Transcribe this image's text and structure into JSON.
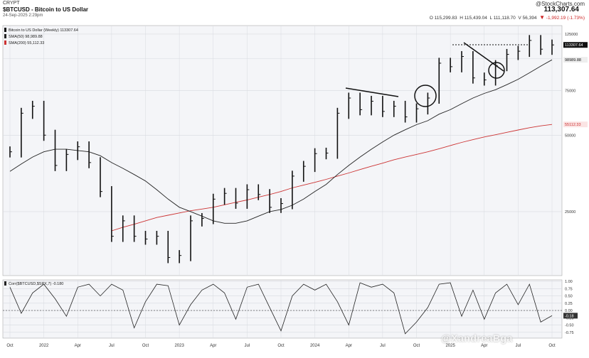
{
  "header": {
    "exchange": "CRYPT",
    "title": "$BTCUSD - Bitcoin to US Dollar",
    "date": "24-Sep-2025 2:29pm",
    "brand": "@StockCharts.com",
    "last": "113,307.64",
    "ohlc": {
      "open_label": "O",
      "open": "115,299.83",
      "high_label": "H",
      "high": "115,439.04",
      "low_label": "L",
      "low": "111,118.70",
      "volume_label": "V",
      "volume": "56,394",
      "change": "-1,992.19 (-1.73%)"
    }
  },
  "legend": {
    "main": "Bitcoin to US Dollar (Weekly) 113307.64",
    "sma50": "SMA(50) 98,989.88",
    "sma200": "SMA(200) 55,112.33"
  },
  "indicator_legend": "Corr($BTCUSD,$SPX,7) -0.180",
  "watermark": "@XandreaBga",
  "colors": {
    "background": "#f4f5f8",
    "bars": "#111111",
    "sma50": "#222222",
    "sma200": "#cc3333",
    "grid": "#d8dae0"
  },
  "chart_data": [
    {
      "type": "line",
      "title": "$BTCUSD - Bitcoin to US Dollar",
      "timeframe": "Weekly",
      "scale": "log",
      "x_ticks": [
        "Oct",
        "2022",
        "Apr",
        "Jul",
        "Oct",
        "2023",
        "Apr",
        "Jul",
        "Oct",
        "2024",
        "Apr",
        "Jul",
        "Oct",
        "2025",
        "Apr",
        "Jul",
        "Oct"
      ],
      "y_ticks": [
        25000,
        50000,
        75000,
        100000,
        125000
      ],
      "y_tick_labels": [
        "25000",
        "50000",
        "75000",
        "100000",
        "125000"
      ],
      "ylim": [
        14000,
        135000
      ],
      "price_label": "113307.64",
      "sma50_label": "98989.88",
      "sma200_label": "55112.33",
      "x": [
        "2021-09",
        "2021-10",
        "2021-11",
        "2021-12",
        "2022-01",
        "2022-02",
        "2022-03",
        "2022-04",
        "2022-05",
        "2022-06",
        "2022-07",
        "2022-08",
        "2022-09",
        "2022-10",
        "2022-11",
        "2022-12",
        "2023-01",
        "2023-02",
        "2023-03",
        "2023-04",
        "2023-05",
        "2023-06",
        "2023-07",
        "2023-08",
        "2023-09",
        "2023-10",
        "2023-11",
        "2023-12",
        "2024-01",
        "2024-02",
        "2024-03",
        "2024-04",
        "2024-05",
        "2024-06",
        "2024-07",
        "2024-08",
        "2024-09",
        "2024-10",
        "2024-11",
        "2024-12",
        "2025-01",
        "2025-02",
        "2025-03",
        "2025-04",
        "2025-05",
        "2025-06",
        "2025-07",
        "2025-08",
        "2025-09"
      ],
      "series": [
        {
          "name": "$BTCUSD",
          "values": [
            43000,
            61000,
            65000,
            50000,
            38000,
            42000,
            45000,
            39000,
            30000,
            20000,
            23000,
            20000,
            19500,
            20000,
            16500,
            16800,
            23000,
            23500,
            28000,
            29500,
            27000,
            30500,
            29200,
            26000,
            26900,
            34500,
            37700,
            42300,
            42500,
            61000,
            70000,
            63000,
            68000,
            62000,
            65000,
            59000,
            63500,
            70000,
            96000,
            93000,
            102000,
            84000,
            82500,
            94000,
            104000,
            107000,
            118000,
            109000,
            113300
          ]
        },
        {
          "name": "SMA(50)",
          "values": [
            36000,
            38500,
            41000,
            43000,
            44000,
            44000,
            43500,
            43000,
            41500,
            39000,
            37000,
            35000,
            33000,
            30500,
            28000,
            26000,
            25000,
            24000,
            23000,
            22500,
            22500,
            23000,
            24000,
            25000,
            25500,
            26500,
            28000,
            30000,
            32000,
            35000,
            38000,
            41000,
            44000,
            47000,
            50000,
            52500,
            55000,
            57000,
            60500,
            63000,
            66500,
            70000,
            73000,
            75500,
            79000,
            83000,
            88000,
            93500,
            98990
          ]
        },
        {
          "name": "SMA(200)",
          "values": [
            null,
            null,
            null,
            null,
            null,
            null,
            null,
            null,
            null,
            21000,
            21700,
            22300,
            23000,
            23700,
            24200,
            24700,
            25200,
            25600,
            26000,
            26600,
            27200,
            27800,
            28500,
            29200,
            30000,
            31000,
            31800,
            32600,
            33500,
            34500,
            35500,
            36600,
            37700,
            38800,
            40000,
            41000,
            42000,
            43000,
            44200,
            45500,
            46800,
            48000,
            49200,
            50200,
            51300,
            52400,
            53500,
            54400,
            55112
          ]
        }
      ]
    },
    {
      "type": "line",
      "title": "Corr($BTCUSD,$SPX,7) -0.180",
      "y_ticks": [
        1.0,
        0.75,
        0.5,
        0.25,
        0.0,
        -0.25,
        -0.5,
        -0.75
      ],
      "y_tick_labels": [
        "1.00",
        "0.75",
        "0.50",
        "0.25",
        "0.00",
        "-0.25",
        "-0.50",
        "-0.75"
      ],
      "ylim": [
        -0.95,
        1.05
      ],
      "last_label": "-0.18",
      "x": [
        "2021-09",
        "2021-10",
        "2021-11",
        "2021-12",
        "2022-01",
        "2022-02",
        "2022-03",
        "2022-04",
        "2022-05",
        "2022-06",
        "2022-07",
        "2022-08",
        "2022-09",
        "2022-10",
        "2022-11",
        "2022-12",
        "2023-01",
        "2023-02",
        "2023-03",
        "2023-04",
        "2023-05",
        "2023-06",
        "2023-07",
        "2023-08",
        "2023-09",
        "2023-10",
        "2023-11",
        "2023-12",
        "2024-01",
        "2024-02",
        "2024-03",
        "2024-04",
        "2024-05",
        "2024-06",
        "2024-07",
        "2024-08",
        "2024-09",
        "2024-10",
        "2024-11",
        "2024-12",
        "2025-01",
        "2025-02",
        "2025-03",
        "2025-04",
        "2025-05",
        "2025-06",
        "2025-07",
        "2025-08",
        "2025-09"
      ],
      "series": [
        {
          "name": "Corr",
          "values": [
            0.8,
            -0.1,
            0.6,
            0.9,
            0.4,
            -0.2,
            0.8,
            0.9,
            0.5,
            0.9,
            0.7,
            -0.6,
            0.3,
            0.9,
            0.85,
            -0.5,
            0.2,
            0.7,
            0.9,
            0.6,
            -0.3,
            0.8,
            0.9,
            0.1,
            -0.7,
            0.5,
            0.9,
            0.7,
            0.9,
            0.3,
            -0.5,
            0.95,
            0.8,
            0.9,
            0.6,
            -0.8,
            -0.4,
            0.1,
            0.9,
            0.95,
            -0.2,
            0.7,
            -0.3,
            0.6,
            0.9,
            0.2,
            0.9,
            -0.4,
            -0.18
          ]
        }
      ]
    }
  ]
}
